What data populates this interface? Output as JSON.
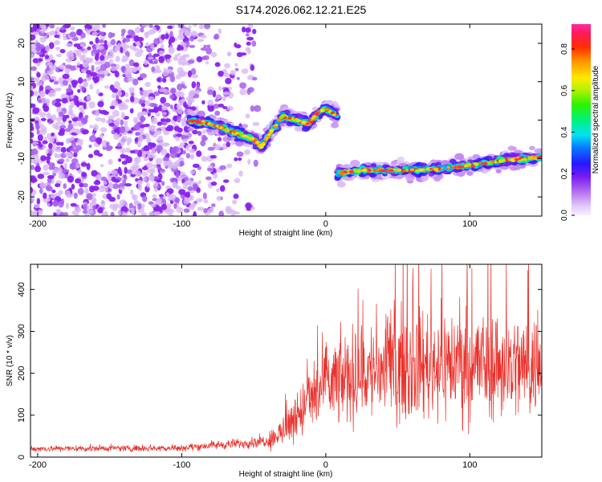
{
  "chart_data": [
    {
      "type": "heatmap",
      "title": "S174.2026.062.12.21.E25",
      "xlabel": "Height of straight line (km)",
      "ylabel": "Frequency (Hz)",
      "xlim": [
        -205,
        150
      ],
      "ylim": [
        -25,
        25
      ],
      "xticks": [
        -200,
        -100,
        0,
        100
      ],
      "yticks": [
        20,
        10,
        0,
        -10,
        -20
      ],
      "colorbar": {
        "label": "Normalized spectral amplitude",
        "range": [
          0.0,
          0.92
        ],
        "ticks": [
          0.0,
          0.2,
          0.4,
          0.6,
          0.8
        ]
      },
      "features": [
        {
          "name": "noise-region",
          "x_range": [
            -205,
            -45
          ],
          "y_range": [
            -25,
            25
          ]
        },
        {
          "name": "left-trace",
          "points": [
            [
              -95,
              0
            ],
            [
              -80,
              -1
            ],
            [
              -65,
              -3
            ],
            [
              -50,
              -5
            ],
            [
              -45,
              -7
            ],
            [
              -38,
              -3
            ],
            [
              -30,
              1
            ],
            [
              -20,
              0
            ],
            [
              -12,
              -1
            ],
            [
              -5,
              2
            ],
            [
              0,
              3
            ],
            [
              8,
              1
            ]
          ]
        },
        {
          "name": "right-trace",
          "points": [
            [
              8,
              -14
            ],
            [
              25,
              -13
            ],
            [
              45,
              -13
            ],
            [
              65,
              -13
            ],
            [
              85,
              -12.5
            ],
            [
              105,
              -11.5
            ],
            [
              125,
              -10.5
            ],
            [
              140,
              -10
            ],
            [
              150,
              -9.5
            ]
          ]
        }
      ]
    },
    {
      "type": "line",
      "xlabel": "Height of straight line (km)",
      "ylabel": "SNR (10 * v/v)",
      "xlim": [
        -205,
        150
      ],
      "ylim": [
        0,
        460
      ],
      "xticks": [
        -200,
        -100,
        0,
        100
      ],
      "yticks": [
        0,
        100,
        200,
        300,
        400
      ],
      "series": [
        {
          "name": "SNR",
          "color": "#e8312b",
          "envelope": [
            [
              -205,
              20
            ],
            [
              -100,
              22
            ],
            [
              -80,
              28
            ],
            [
              -60,
              32
            ],
            [
              -40,
              40
            ],
            [
              -30,
              60
            ],
            [
              -20,
              100
            ],
            [
              -10,
              140
            ],
            [
              0,
              170
            ],
            [
              20,
              195
            ],
            [
              40,
              210
            ],
            [
              60,
              220
            ],
            [
              80,
              225
            ],
            [
              100,
              225
            ],
            [
              120,
              220
            ],
            [
              150,
              215
            ]
          ]
        }
      ]
    }
  ]
}
